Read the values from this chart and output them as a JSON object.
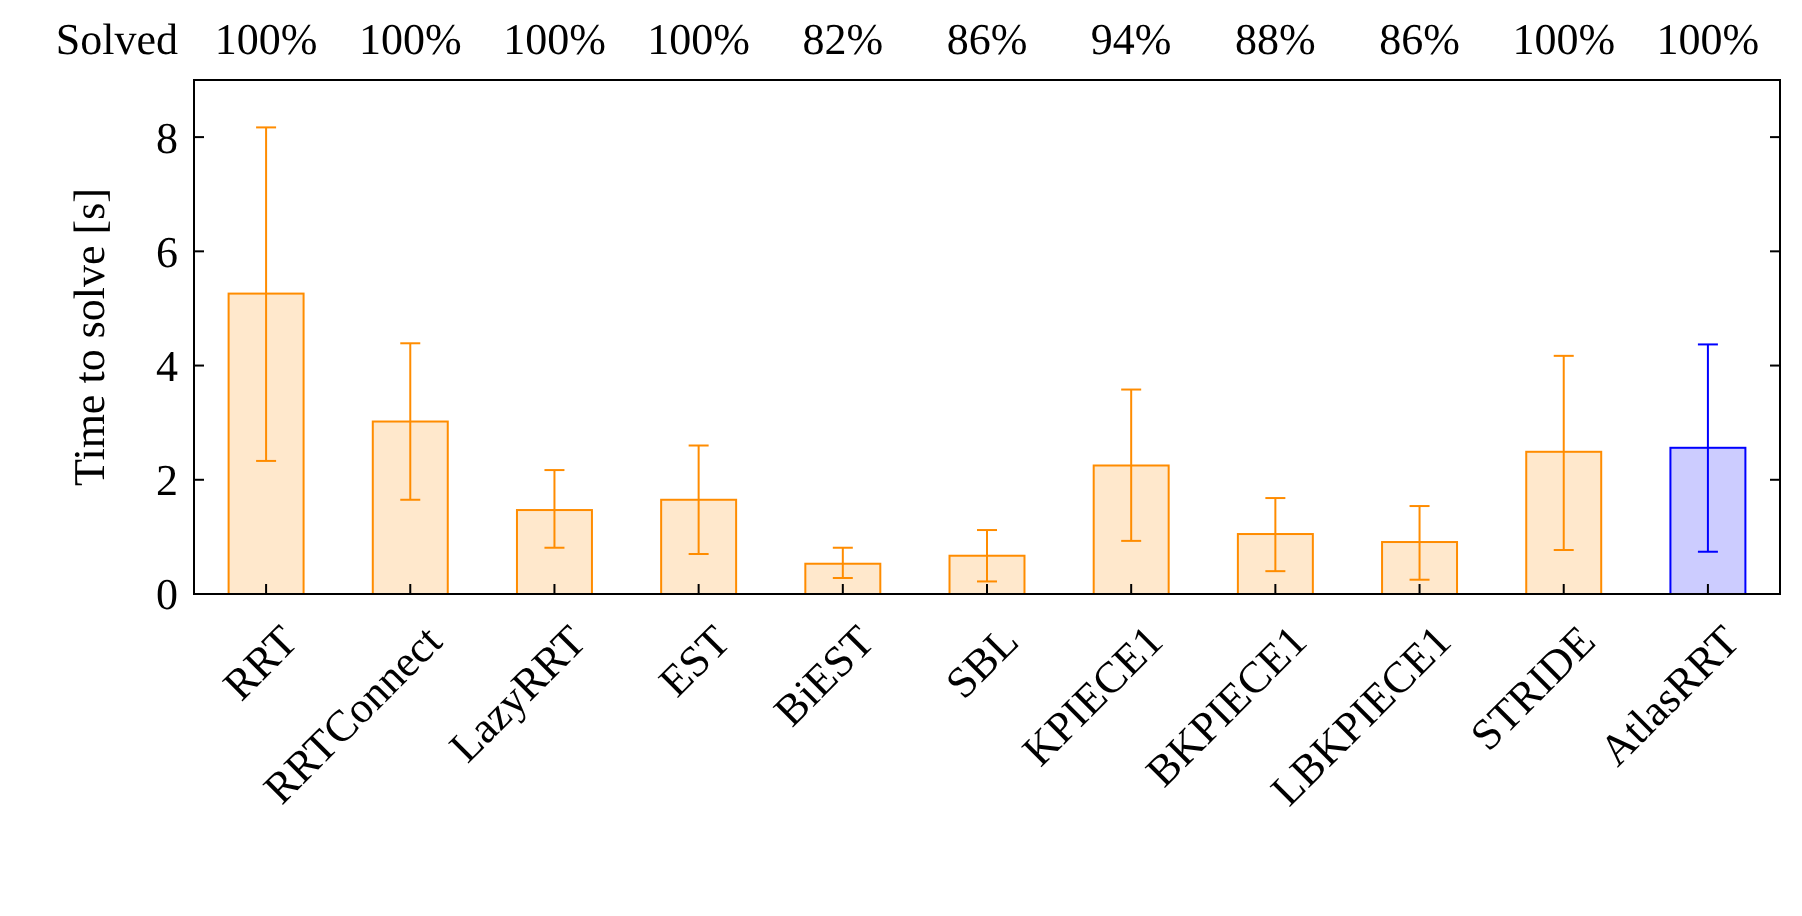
{
  "chart_data": {
    "type": "bar",
    "ylabel": "Time to solve [s]",
    "categories": [
      "RRT",
      "RRTConnect",
      "LazyRRT",
      "EST",
      "BiEST",
      "SBL",
      "KPIECE1",
      "BKPIECE1",
      "LBKPIECE1",
      "STRIDE",
      "AtlasRRT"
    ],
    "values": [
      5.26,
      3.02,
      1.47,
      1.65,
      0.53,
      0.67,
      2.25,
      1.05,
      0.91,
      2.49,
      2.56
    ],
    "errors": [
      [
        2.33,
        8.17
      ],
      [
        1.65,
        4.39
      ],
      [
        0.81,
        2.17
      ],
      [
        0.7,
        2.6
      ],
      [
        0.28,
        0.81
      ],
      [
        0.22,
        1.12
      ],
      [
        0.93,
        3.58
      ],
      [
        0.4,
        1.68
      ],
      [
        0.25,
        1.54
      ],
      [
        0.77,
        4.17
      ],
      [
        0.74,
        4.37
      ]
    ],
    "colors": [
      "#ff8c00",
      "#ff8c00",
      "#ff8c00",
      "#ff8c00",
      "#ff8c00",
      "#ff8c00",
      "#ff8c00",
      "#ff8c00",
      "#ff8c00",
      "#ff8c00",
      "#0000ff"
    ],
    "ylim": [
      0,
      9
    ],
    "yticks": [
      0,
      2,
      4,
      6,
      8
    ],
    "grid": false,
    "annotations": [
      "Solved",
      "100%",
      "100%",
      "100%",
      "100%",
      "82%",
      "86%",
      "94%",
      "88%",
      "86%",
      "100%",
      "100%"
    ]
  }
}
